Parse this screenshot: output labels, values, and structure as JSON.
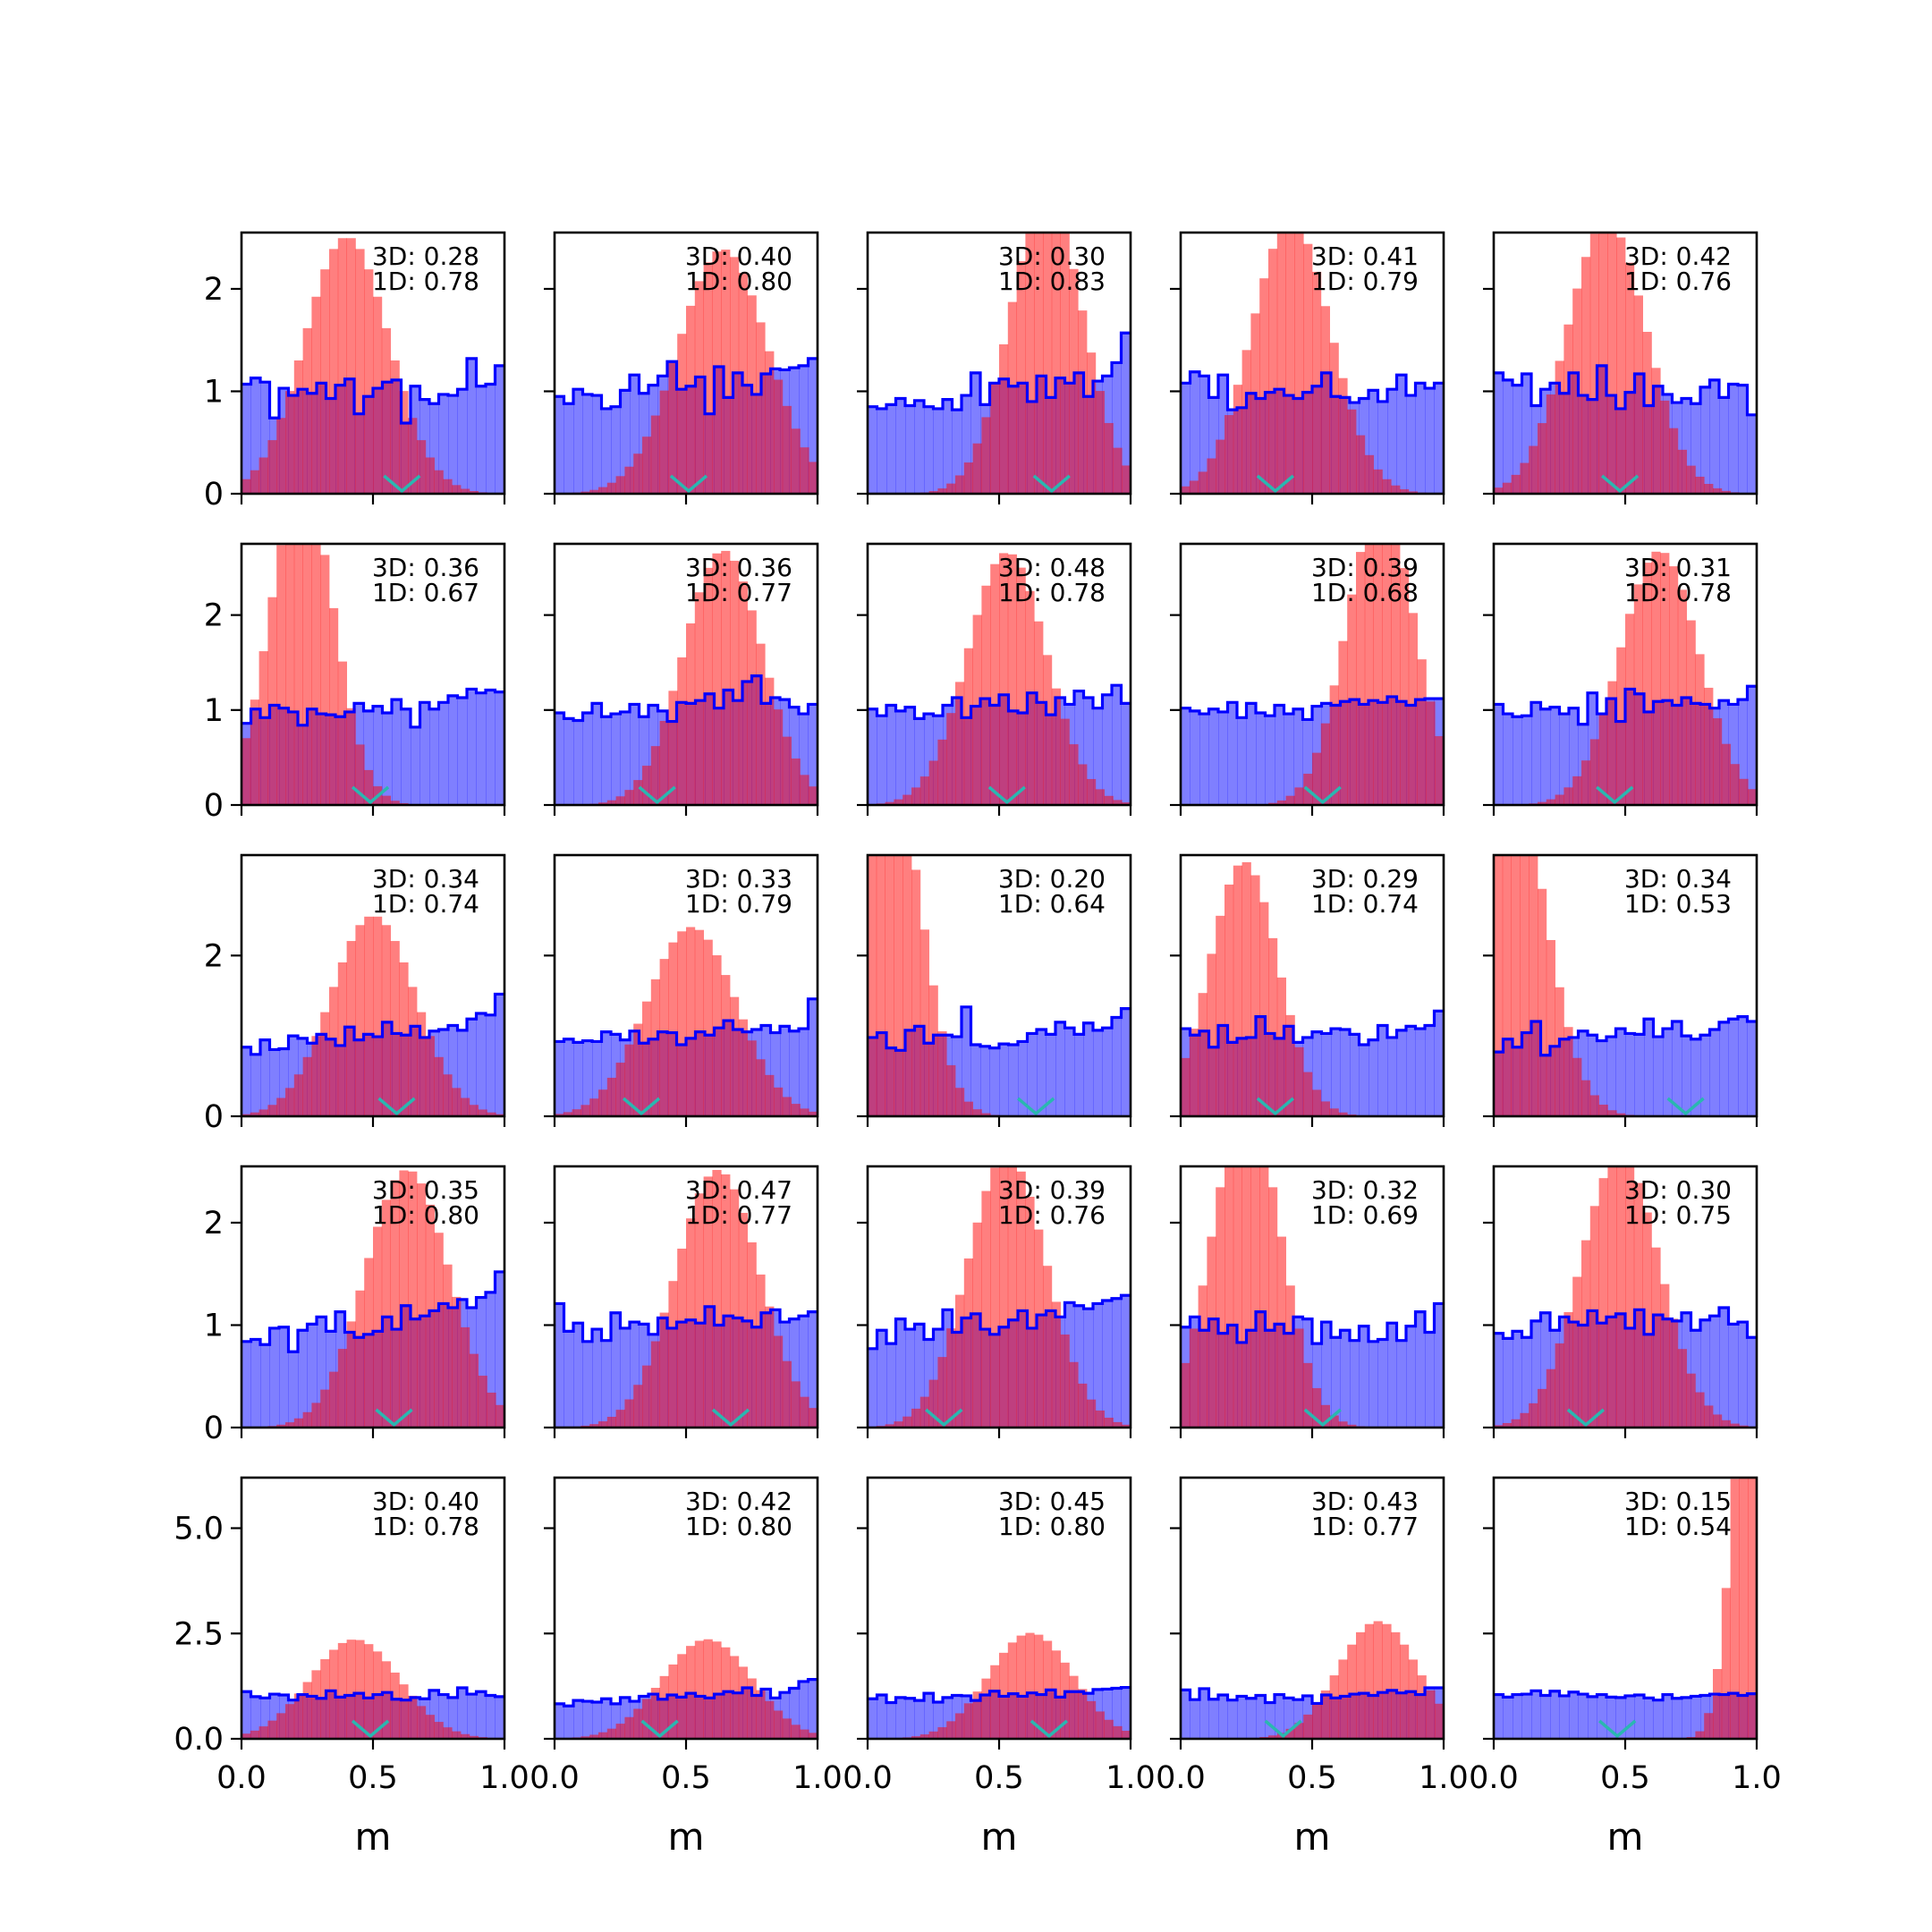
{
  "chart_data": {
    "type": "histogram-grid",
    "rows": 5,
    "cols": 5,
    "xlabel": "m",
    "x_range": [
      0.0,
      1.0
    ],
    "x_ticks": [
      0.0,
      0.5,
      1.0
    ],
    "x_tick_labels": [
      "0.0",
      "0.5",
      "1.0"
    ],
    "y_ranges": [
      [
        0,
        2.55
      ],
      [
        0,
        2.75
      ],
      [
        0,
        3.25
      ],
      [
        0,
        2.55
      ],
      [
        0,
        6.2
      ]
    ],
    "y_ticks": [
      [
        0,
        1,
        2
      ],
      [
        0,
        1,
        2
      ],
      [
        0,
        2
      ],
      [
        0,
        1,
        2
      ],
      [
        0.0,
        2.5,
        5.0
      ]
    ],
    "y_tick_labels": [
      [
        "0",
        "1",
        "2"
      ],
      [
        "0",
        "1",
        "2"
      ],
      [
        "0",
        "2"
      ],
      [
        "0",
        "1",
        "2"
      ],
      [
        "0.0",
        "2.5",
        "5.0"
      ]
    ],
    "colors": {
      "posterior_fill": "#ff0000",
      "prior_fill": "#0000ff",
      "prior_step": "#0000ff",
      "true_marker": "#2ab7b0"
    },
    "panels": [
      {
        "annotation": [
          "3D: 0.28",
          "1D: 0.78"
        ],
        "true_value": 0.61,
        "posterior_mu": 0.4,
        "posterior_sigma": 0.16,
        "prior_values": [
          1.07,
          1.13,
          1.09,
          0.74,
          1.03,
          0.96,
          1.02,
          0.98,
          1.08,
          0.93,
          1.06,
          1.12,
          0.78,
          0.95,
          1.03,
          1.09,
          1.11,
          0.69,
          1.05,
          0.92,
          0.88,
          0.97,
          0.96,
          1.02,
          1.32,
          1.05,
          1.07,
          1.25
        ]
      },
      {
        "annotation": [
          "3D: 0.40",
          "1D: 0.80"
        ],
        "true_value": 0.51,
        "posterior_mu": 0.64,
        "posterior_sigma": 0.17,
        "prior_values": [
          0.95,
          0.88,
          1.02,
          0.97,
          0.96,
          0.83,
          0.85,
          1.01,
          1.16,
          0.98,
          1.06,
          1.15,
          1.29,
          1.02,
          1.05,
          1.14,
          0.78,
          1.24,
          0.94,
          1.18,
          1.06,
          0.97,
          1.17,
          1.22,
          1.21,
          1.23,
          1.25,
          1.32
        ]
      },
      {
        "annotation": [
          "3D: 0.30",
          "1D: 0.83"
        ],
        "true_value": 0.7,
        "posterior_mu": 0.68,
        "posterior_sigma": 0.14,
        "prior_values": [
          0.85,
          0.83,
          0.87,
          0.93,
          0.86,
          0.91,
          0.85,
          0.83,
          0.92,
          0.82,
          0.96,
          1.18,
          0.87,
          1.08,
          1.12,
          1.05,
          1.08,
          0.9,
          1.15,
          0.94,
          1.13,
          1.08,
          1.18,
          0.95,
          1.1,
          1.15,
          1.28,
          1.57
        ]
      },
      {
        "annotation": [
          "3D: 0.41",
          "1D: 0.79"
        ],
        "true_value": 0.36,
        "posterior_mu": 0.42,
        "posterior_sigma": 0.15,
        "prior_values": [
          1.08,
          1.19,
          1.15,
          0.94,
          1.16,
          0.82,
          0.84,
          0.98,
          0.93,
          0.99,
          1.02,
          0.96,
          0.93,
          0.99,
          1.05,
          1.18,
          0.95,
          0.94,
          0.89,
          0.93,
          1.01,
          0.9,
          1.02,
          1.16,
          0.96,
          1.08,
          1.03,
          1.08
        ]
      },
      {
        "annotation": [
          "3D: 0.42",
          "1D: 0.76"
        ],
        "true_value": 0.48,
        "posterior_mu": 0.43,
        "posterior_sigma": 0.15,
        "prior_values": [
          1.18,
          1.11,
          1.06,
          1.17,
          0.86,
          1.02,
          1.08,
          0.98,
          1.18,
          0.96,
          0.92,
          1.25,
          0.96,
          0.83,
          0.99,
          1.17,
          0.86,
          1.05,
          0.97,
          0.89,
          0.93,
          0.88,
          1.04,
          1.11,
          0.94,
          1.07,
          1.06,
          0.77
        ]
      },
      {
        "annotation": [
          "3D: 0.36",
          "1D: 0.67"
        ],
        "true_value": 0.49,
        "posterior_mu": 0.23,
        "posterior_sigma": 0.12,
        "prior_values": [
          0.86,
          1.01,
          0.92,
          1.05,
          1.02,
          0.98,
          0.84,
          1.01,
          0.96,
          0.95,
          0.93,
          0.98,
          1.07,
          0.99,
          1.04,
          0.97,
          1.11,
          1.01,
          0.82,
          1.08,
          1.01,
          1.08,
          1.15,
          1.13,
          1.22,
          1.18,
          1.21,
          1.19
        ]
      },
      {
        "annotation": [
          "3D: 0.36",
          "1D: 0.77"
        ],
        "true_value": 0.39,
        "posterior_mu": 0.64,
        "posterior_sigma": 0.15,
        "prior_values": [
          0.97,
          0.91,
          0.89,
          0.97,
          1.07,
          0.93,
          0.96,
          0.98,
          1.06,
          0.93,
          1.05,
          0.99,
          0.88,
          1.08,
          1.07,
          1.1,
          1.17,
          1.02,
          1.21,
          1.1,
          1.3,
          1.36,
          1.07,
          1.13,
          1.11,
          1.03,
          0.96,
          1.06
        ]
      },
      {
        "annotation": [
          "3D: 0.48",
          "1D: 0.78"
        ],
        "true_value": 0.53,
        "posterior_mu": 0.53,
        "posterior_sigma": 0.15,
        "prior_values": [
          1.01,
          0.94,
          1.05,
          0.99,
          1.03,
          0.91,
          0.96,
          0.94,
          1.05,
          1.13,
          0.92,
          1.04,
          1.12,
          1.05,
          1.16,
          0.99,
          0.97,
          1.18,
          1.08,
          0.95,
          1.13,
          1.06,
          1.2,
          1.13,
          1.02,
          1.16,
          1.26,
          1.07
        ]
      },
      {
        "annotation": [
          "3D: 0.39",
          "1D: 0.68"
        ],
        "true_value": 0.54,
        "posterior_mu": 0.76,
        "posterior_sigma": 0.13,
        "prior_values": [
          1.02,
          0.99,
          0.96,
          1.01,
          0.98,
          1.08,
          0.92,
          1.07,
          0.97,
          0.94,
          1.05,
          0.96,
          1.01,
          0.9,
          1.04,
          1.07,
          1.05,
          1.09,
          1.11,
          1.06,
          1.1,
          1.08,
          1.14,
          1.09,
          1.05,
          1.11,
          1.12,
          1.12
        ]
      },
      {
        "annotation": [
          "3D: 0.31",
          "1D: 0.78"
        ],
        "true_value": 0.46,
        "posterior_mu": 0.63,
        "posterior_sigma": 0.15,
        "prior_values": [
          1.06,
          0.96,
          0.93,
          0.94,
          1.08,
          1.01,
          1.03,
          0.96,
          1.02,
          0.85,
          1.18,
          0.96,
          1.12,
          0.88,
          1.22,
          1.17,
          0.98,
          1.09,
          1.1,
          1.05,
          1.13,
          1.07,
          1.06,
          1.02,
          1.1,
          1.06,
          1.11,
          1.25
        ]
      },
      {
        "annotation": [
          "3D: 0.34",
          "1D: 0.74"
        ],
        "true_value": 0.59,
        "posterior_mu": 0.5,
        "posterior_sigma": 0.16,
        "prior_values": [
          0.86,
          0.77,
          0.95,
          0.83,
          0.84,
          1.0,
          0.97,
          0.91,
          1.02,
          0.96,
          0.88,
          1.11,
          0.95,
          1.02,
          0.99,
          1.17,
          1.03,
          1.01,
          1.12,
          0.98,
          1.06,
          1.08,
          1.13,
          1.07,
          1.21,
          1.28,
          1.26,
          1.52
        ]
      },
      {
        "annotation": [
          "3D: 0.33",
          "1D: 0.79"
        ],
        "true_value": 0.33,
        "posterior_mu": 0.52,
        "posterior_sigma": 0.17,
        "prior_values": [
          0.93,
          0.96,
          0.92,
          0.94,
          0.93,
          1.05,
          1.02,
          0.95,
          1.06,
          0.91,
          0.96,
          1.05,
          1.04,
          0.89,
          0.97,
          1.05,
          1.01,
          1.1,
          1.19,
          1.08,
          1.05,
          1.08,
          1.13,
          1.04,
          1.12,
          1.06,
          1.09,
          1.46
        ]
      },
      {
        "annotation": [
          "3D: 0.20",
          "1D: 0.64"
        ],
        "true_value": 0.64,
        "posterior_mu": 0.08,
        "posterior_sigma": 0.12,
        "prior_values": [
          0.98,
          1.04,
          0.85,
          0.82,
          1.07,
          1.12,
          0.91,
          1.01,
          1.01,
          0.99,
          1.36,
          0.89,
          0.87,
          0.85,
          0.9,
          0.89,
          0.93,
          1.03,
          1.08,
          1.02,
          1.17,
          1.1,
          1.02,
          1.16,
          1.07,
          1.1,
          1.23,
          1.34
        ]
      },
      {
        "annotation": [
          "3D: 0.29",
          "1D: 0.74"
        ],
        "true_value": 0.36,
        "posterior_mu": 0.24,
        "posterior_sigma": 0.13,
        "prior_values": [
          1.09,
          1.01,
          1.06,
          0.86,
          1.13,
          0.92,
          0.97,
          0.98,
          1.24,
          1.03,
          0.97,
          1.12,
          0.92,
          0.98,
          1.05,
          1.03,
          1.09,
          1.08,
          1.02,
          0.89,
          0.95,
          1.13,
          0.98,
          1.07,
          1.12,
          1.09,
          1.13,
          1.31
        ]
      },
      {
        "annotation": [
          "3D: 0.34",
          "1D: 0.53"
        ],
        "true_value": 0.73,
        "posterior_mu": 0.05,
        "posterior_sigma": 0.14,
        "prior_values": [
          0.8,
          0.96,
          0.86,
          1.04,
          1.18,
          0.76,
          0.87,
          0.96,
          0.98,
          1.06,
          1.01,
          0.94,
          0.99,
          1.09,
          1.03,
          1.02,
          1.21,
          0.99,
          1.09,
          1.18,
          1.0,
          0.96,
          1.01,
          1.08,
          1.17,
          1.21,
          1.24,
          1.18
        ]
      },
      {
        "annotation": [
          "3D: 0.35",
          "1D: 0.80"
        ],
        "true_value": 0.58,
        "posterior_mu": 0.63,
        "posterior_sigma": 0.16,
        "prior_values": [
          0.84,
          0.86,
          0.81,
          0.97,
          0.98,
          0.74,
          0.95,
          1.01,
          1.08,
          0.94,
          1.13,
          0.93,
          0.88,
          0.91,
          0.94,
          1.08,
          0.96,
          1.19,
          1.06,
          1.09,
          1.14,
          1.21,
          1.17,
          1.25,
          1.17,
          1.27,
          1.32,
          1.52
        ]
      },
      {
        "annotation": [
          "3D: 0.47",
          "1D: 0.77"
        ],
        "true_value": 0.67,
        "posterior_mu": 0.62,
        "posterior_sigma": 0.16,
        "prior_values": [
          1.21,
          0.94,
          1.02,
          0.84,
          0.96,
          0.85,
          1.12,
          0.97,
          1.03,
          1.01,
          0.91,
          1.07,
          0.97,
          1.03,
          1.05,
          1.02,
          1.18,
          1.0,
          1.09,
          1.07,
          1.04,
          0.98,
          1.12,
          1.15,
          1.03,
          1.06,
          1.09,
          1.13
        ]
      },
      {
        "annotation": [
          "3D: 0.39",
          "1D: 0.76"
        ],
        "true_value": 0.29,
        "posterior_mu": 0.53,
        "posterior_sigma": 0.15,
        "prior_values": [
          0.77,
          0.95,
          0.82,
          1.06,
          0.96,
          1.01,
          0.86,
          0.96,
          1.15,
          0.93,
          1.07,
          1.11,
          0.96,
          0.91,
          0.98,
          1.05,
          1.14,
          0.97,
          1.1,
          1.14,
          1.08,
          1.22,
          1.19,
          1.16,
          1.21,
          1.24,
          1.26,
          1.29
        ]
      },
      {
        "annotation": [
          "3D: 0.32",
          "1D: 0.69"
        ],
        "true_value": 0.54,
        "posterior_mu": 0.25,
        "posterior_sigma": 0.13,
        "prior_values": [
          0.98,
          1.08,
          0.95,
          1.06,
          0.92,
          1.0,
          0.83,
          0.95,
          1.13,
          0.95,
          1.01,
          0.92,
          1.08,
          1.06,
          0.82,
          1.03,
          0.88,
          0.95,
          0.85,
          0.99,
          0.84,
          0.86,
          1.02,
          0.85,
          0.99,
          1.13,
          0.93,
          1.21
        ]
      },
      {
        "annotation": [
          "3D: 0.30",
          "1D: 0.75"
        ],
        "true_value": 0.35,
        "posterior_mu": 0.48,
        "posterior_sigma": 0.15,
        "prior_values": [
          0.92,
          0.87,
          0.94,
          0.88,
          1.04,
          1.12,
          0.95,
          1.08,
          1.03,
          1.0,
          1.14,
          1.02,
          1.08,
          1.11,
          0.97,
          1.15,
          0.91,
          1.1,
          1.06,
          1.04,
          1.12,
          0.95,
          1.05,
          1.09,
          1.17,
          1.01,
          1.03,
          0.88
        ]
      },
      {
        "annotation": [
          "3D: 0.40",
          "1D: 0.78"
        ],
        "true_value": 0.49,
        "posterior_mu": 0.43,
        "posterior_sigma": 0.17,
        "prior_values": [
          1.12,
          1.0,
          0.97,
          1.06,
          1.04,
          0.92,
          1.05,
          1.01,
          0.96,
          1.14,
          0.99,
          1.03,
          1.08,
          0.97,
          1.05,
          1.1,
          0.94,
          0.92,
          0.98,
          0.95,
          1.15,
          1.05,
          0.98,
          1.21,
          1.06,
          1.12,
          1.03,
          1.0
        ]
      },
      {
        "annotation": [
          "3D: 0.42",
          "1D: 0.80"
        ],
        "true_value": 0.4,
        "posterior_mu": 0.58,
        "posterior_sigma": 0.17,
        "prior_values": [
          0.83,
          0.78,
          0.91,
          0.89,
          0.87,
          0.95,
          0.83,
          0.98,
          0.89,
          1.01,
          1.06,
          0.94,
          1.04,
          0.99,
          1.08,
          1.01,
          0.97,
          1.06,
          1.12,
          1.09,
          1.21,
          1.03,
          1.18,
          0.97,
          1.1,
          1.2,
          1.36,
          1.41
        ]
      },
      {
        "annotation": [
          "3D: 0.45",
          "1D: 0.80"
        ],
        "true_value": 0.69,
        "posterior_mu": 0.62,
        "posterior_sigma": 0.16,
        "prior_values": [
          0.95,
          1.04,
          0.86,
          0.98,
          0.96,
          0.91,
          1.08,
          0.87,
          0.98,
          1.03,
          1.02,
          0.91,
          1.04,
          1.13,
          1.01,
          1.07,
          1.01,
          1.09,
          1.05,
          1.16,
          0.99,
          1.12,
          1.12,
          1.08,
          1.17,
          1.18,
          1.2,
          1.22
        ]
      },
      {
        "annotation": [
          "3D: 0.43",
          "1D: 0.77"
        ],
        "true_value": 0.39,
        "posterior_mu": 0.75,
        "posterior_sigma": 0.15,
        "prior_values": [
          1.16,
          0.93,
          1.19,
          0.94,
          1.04,
          0.92,
          1.01,
          0.96,
          1.03,
          0.86,
          1.05,
          0.97,
          0.93,
          1.02,
          0.84,
          1.04,
          0.97,
          1.01,
          1.06,
          1.08,
          1.03,
          1.1,
          1.15,
          1.09,
          1.12,
          1.05,
          1.21,
          1.21
        ]
      },
      {
        "annotation": [
          "3D: 0.15",
          "1D: 0.54"
        ],
        "true_value": 0.47,
        "posterior_mu": 0.98,
        "posterior_sigma": 0.07,
        "prior_values": [
          1.05,
          0.99,
          1.05,
          1.06,
          1.14,
          1.03,
          1.13,
          1.02,
          1.11,
          1.06,
          1.0,
          1.05,
          0.99,
          0.98,
          1.02,
          1.04,
          0.97,
          0.92,
          1.05,
          0.96,
          0.98,
          1.01,
          1.03,
          1.06,
          1.05,
          1.08,
          1.03,
          1.07
        ]
      }
    ]
  }
}
